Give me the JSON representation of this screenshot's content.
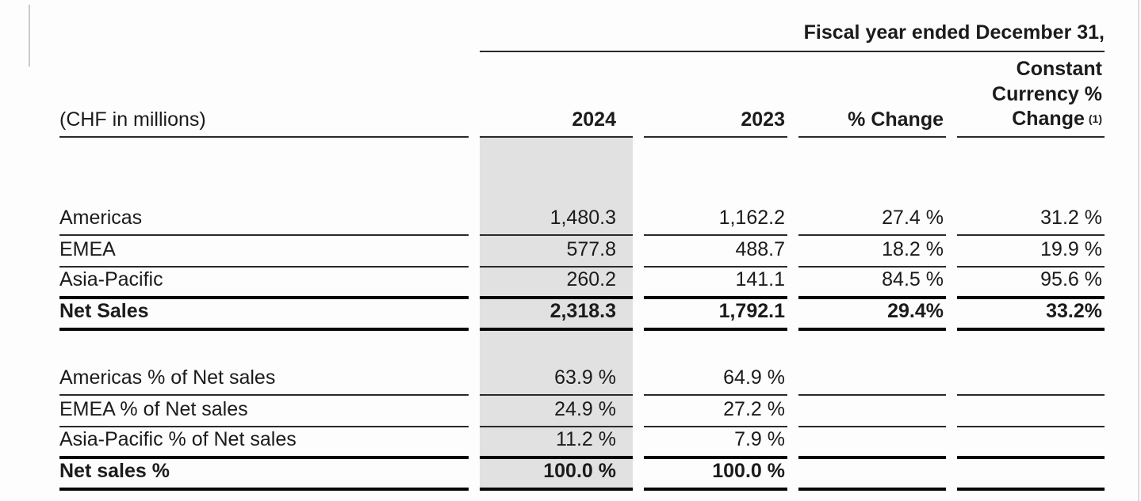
{
  "colors": {
    "column_shade": "#e1e1e1",
    "thin_rule": "#2a2a2a",
    "thick_rule": "#050505",
    "text": "#1b1b1b"
  },
  "table": {
    "spanner_heading": "Fiscal year ended December 31,",
    "header": {
      "unit_label": "(CHF in millions)",
      "col_2024": "2024",
      "col_2023": "2023",
      "col_pct_change": "% Change",
      "cc_line1": "Constant",
      "cc_line2": "Currency %",
      "cc_line3": "Change",
      "cc_footnote": "(1)"
    },
    "rows": [
      {
        "label": "Americas",
        "y2024": "1,480.3",
        "y2023": "1,162.2",
        "pct_change": "27.4 %",
        "cc_change": "31.2 %"
      },
      {
        "label": "EMEA",
        "y2024": "577.8",
        "y2023": "488.7",
        "pct_change": "18.2 %",
        "cc_change": "19.9 %"
      },
      {
        "label": "Asia-Pacific",
        "y2024": "260.2",
        "y2023": "141.1",
        "pct_change": "84.5 %",
        "cc_change": "95.6 %"
      },
      {
        "label": "Net Sales",
        "y2024": "2,318.3",
        "y2023": "1,792.1",
        "pct_change": "29.4%",
        "cc_change": "33.2%"
      },
      {
        "label": "Americas % of Net sales",
        "y2024": "63.9 %",
        "y2023": "64.9 %",
        "pct_change": "",
        "cc_change": ""
      },
      {
        "label": "EMEA % of Net sales",
        "y2024": "24.9 %",
        "y2023": "27.2 %",
        "pct_change": "",
        "cc_change": ""
      },
      {
        "label": "Asia-Pacific % of Net sales",
        "y2024": "11.2 %",
        "y2023": "7.9 %",
        "pct_change": "",
        "cc_change": ""
      },
      {
        "label": "Net sales %",
        "y2024": "100.0 %",
        "y2023": "100.0 %",
        "pct_change": "",
        "cc_change": ""
      }
    ]
  }
}
